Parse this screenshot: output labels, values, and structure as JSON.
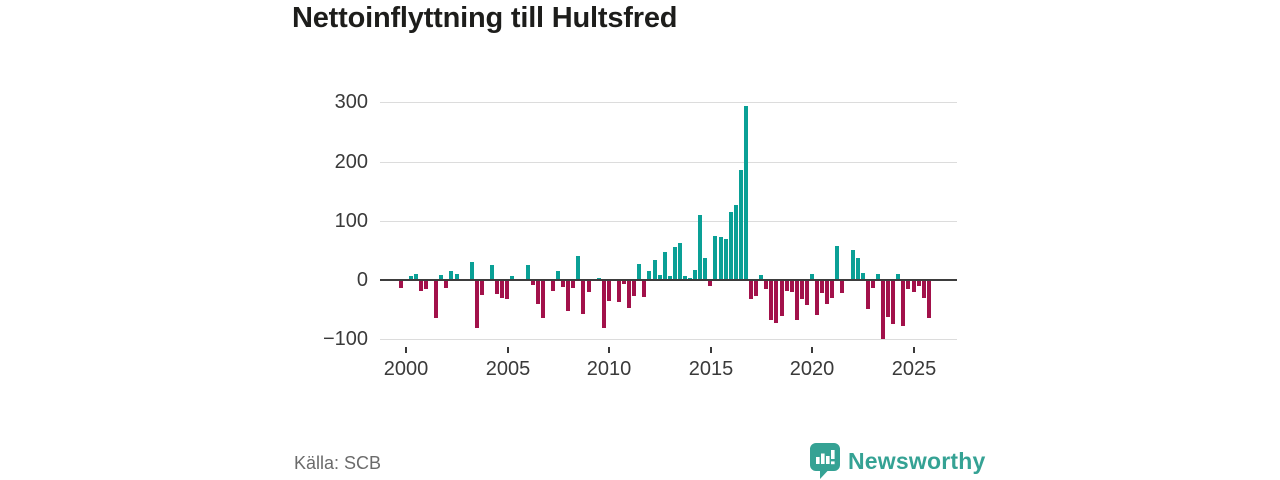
{
  "title": "Nettoinflyttning till Hultsfred",
  "source": "Källa: SCB",
  "branding": {
    "logo_text": "Newsworthy",
    "logo_icon": "newsworthy-bubble-chart-icon",
    "brand_color": "#35a294"
  },
  "colors": {
    "positive_bar": "#0aa096",
    "negative_bar": "#a2114a",
    "zero_line": "#3d3d3d",
    "gridline": "#dcdcdc",
    "title_text": "#1d1d1b",
    "axis_text": "#3a3a3a",
    "source_text": "#6b6b6b"
  },
  "chart_data": {
    "type": "bar",
    "title": "Nettoinflyttning till Hultsfred",
    "frequency": "quarterly",
    "start_period": "1999-Q4",
    "end_period": "2025-Q4",
    "xlabel": "",
    "ylabel": "",
    "ylim": [
      -100,
      300
    ],
    "y_ticks": [
      "300",
      "200",
      "100",
      "0",
      "−100"
    ],
    "y_tick_values": [
      300,
      200,
      100,
      0,
      -100
    ],
    "x_ticks": [
      "2000",
      "2005",
      "2010",
      "2015",
      "2020",
      "2025"
    ],
    "x_tick_values": [
      2000,
      2005,
      2010,
      2015,
      2020,
      2025
    ],
    "grid": "horizontal",
    "legend": "none",
    "positive_color": "#0aa096",
    "negative_color": "#a2114a",
    "values": [
      -12,
      2,
      7,
      11,
      -17,
      -13,
      0,
      -62,
      8,
      -11,
      15,
      11,
      0,
      0,
      30,
      -80,
      -24,
      0,
      26,
      -22,
      -28,
      -31,
      6,
      0,
      0,
      25,
      -6,
      -39,
      -62,
      0,
      -16,
      16,
      -10,
      -51,
      -12,
      40,
      -55,
      -18,
      0,
      4,
      -80,
      -33,
      0,
      -36,
      -5,
      -46,
      -25,
      27,
      -27,
      16,
      34,
      8,
      48,
      6,
      55,
      63,
      7,
      4,
      17,
      110,
      38,
      -8,
      75,
      72,
      70,
      115,
      127,
      185,
      293,
      -30,
      -25,
      8,
      -14,
      -65,
      -71,
      -59,
      -17,
      -19,
      -65,
      -30,
      -40,
      10,
      -58,
      -20,
      -39,
      -29,
      57,
      -21,
      0,
      51,
      37,
      12,
      -48,
      -12,
      11,
      -98,
      -61,
      -72,
      11,
      -76,
      -14,
      -18,
      -9,
      -29,
      -63
    ]
  }
}
